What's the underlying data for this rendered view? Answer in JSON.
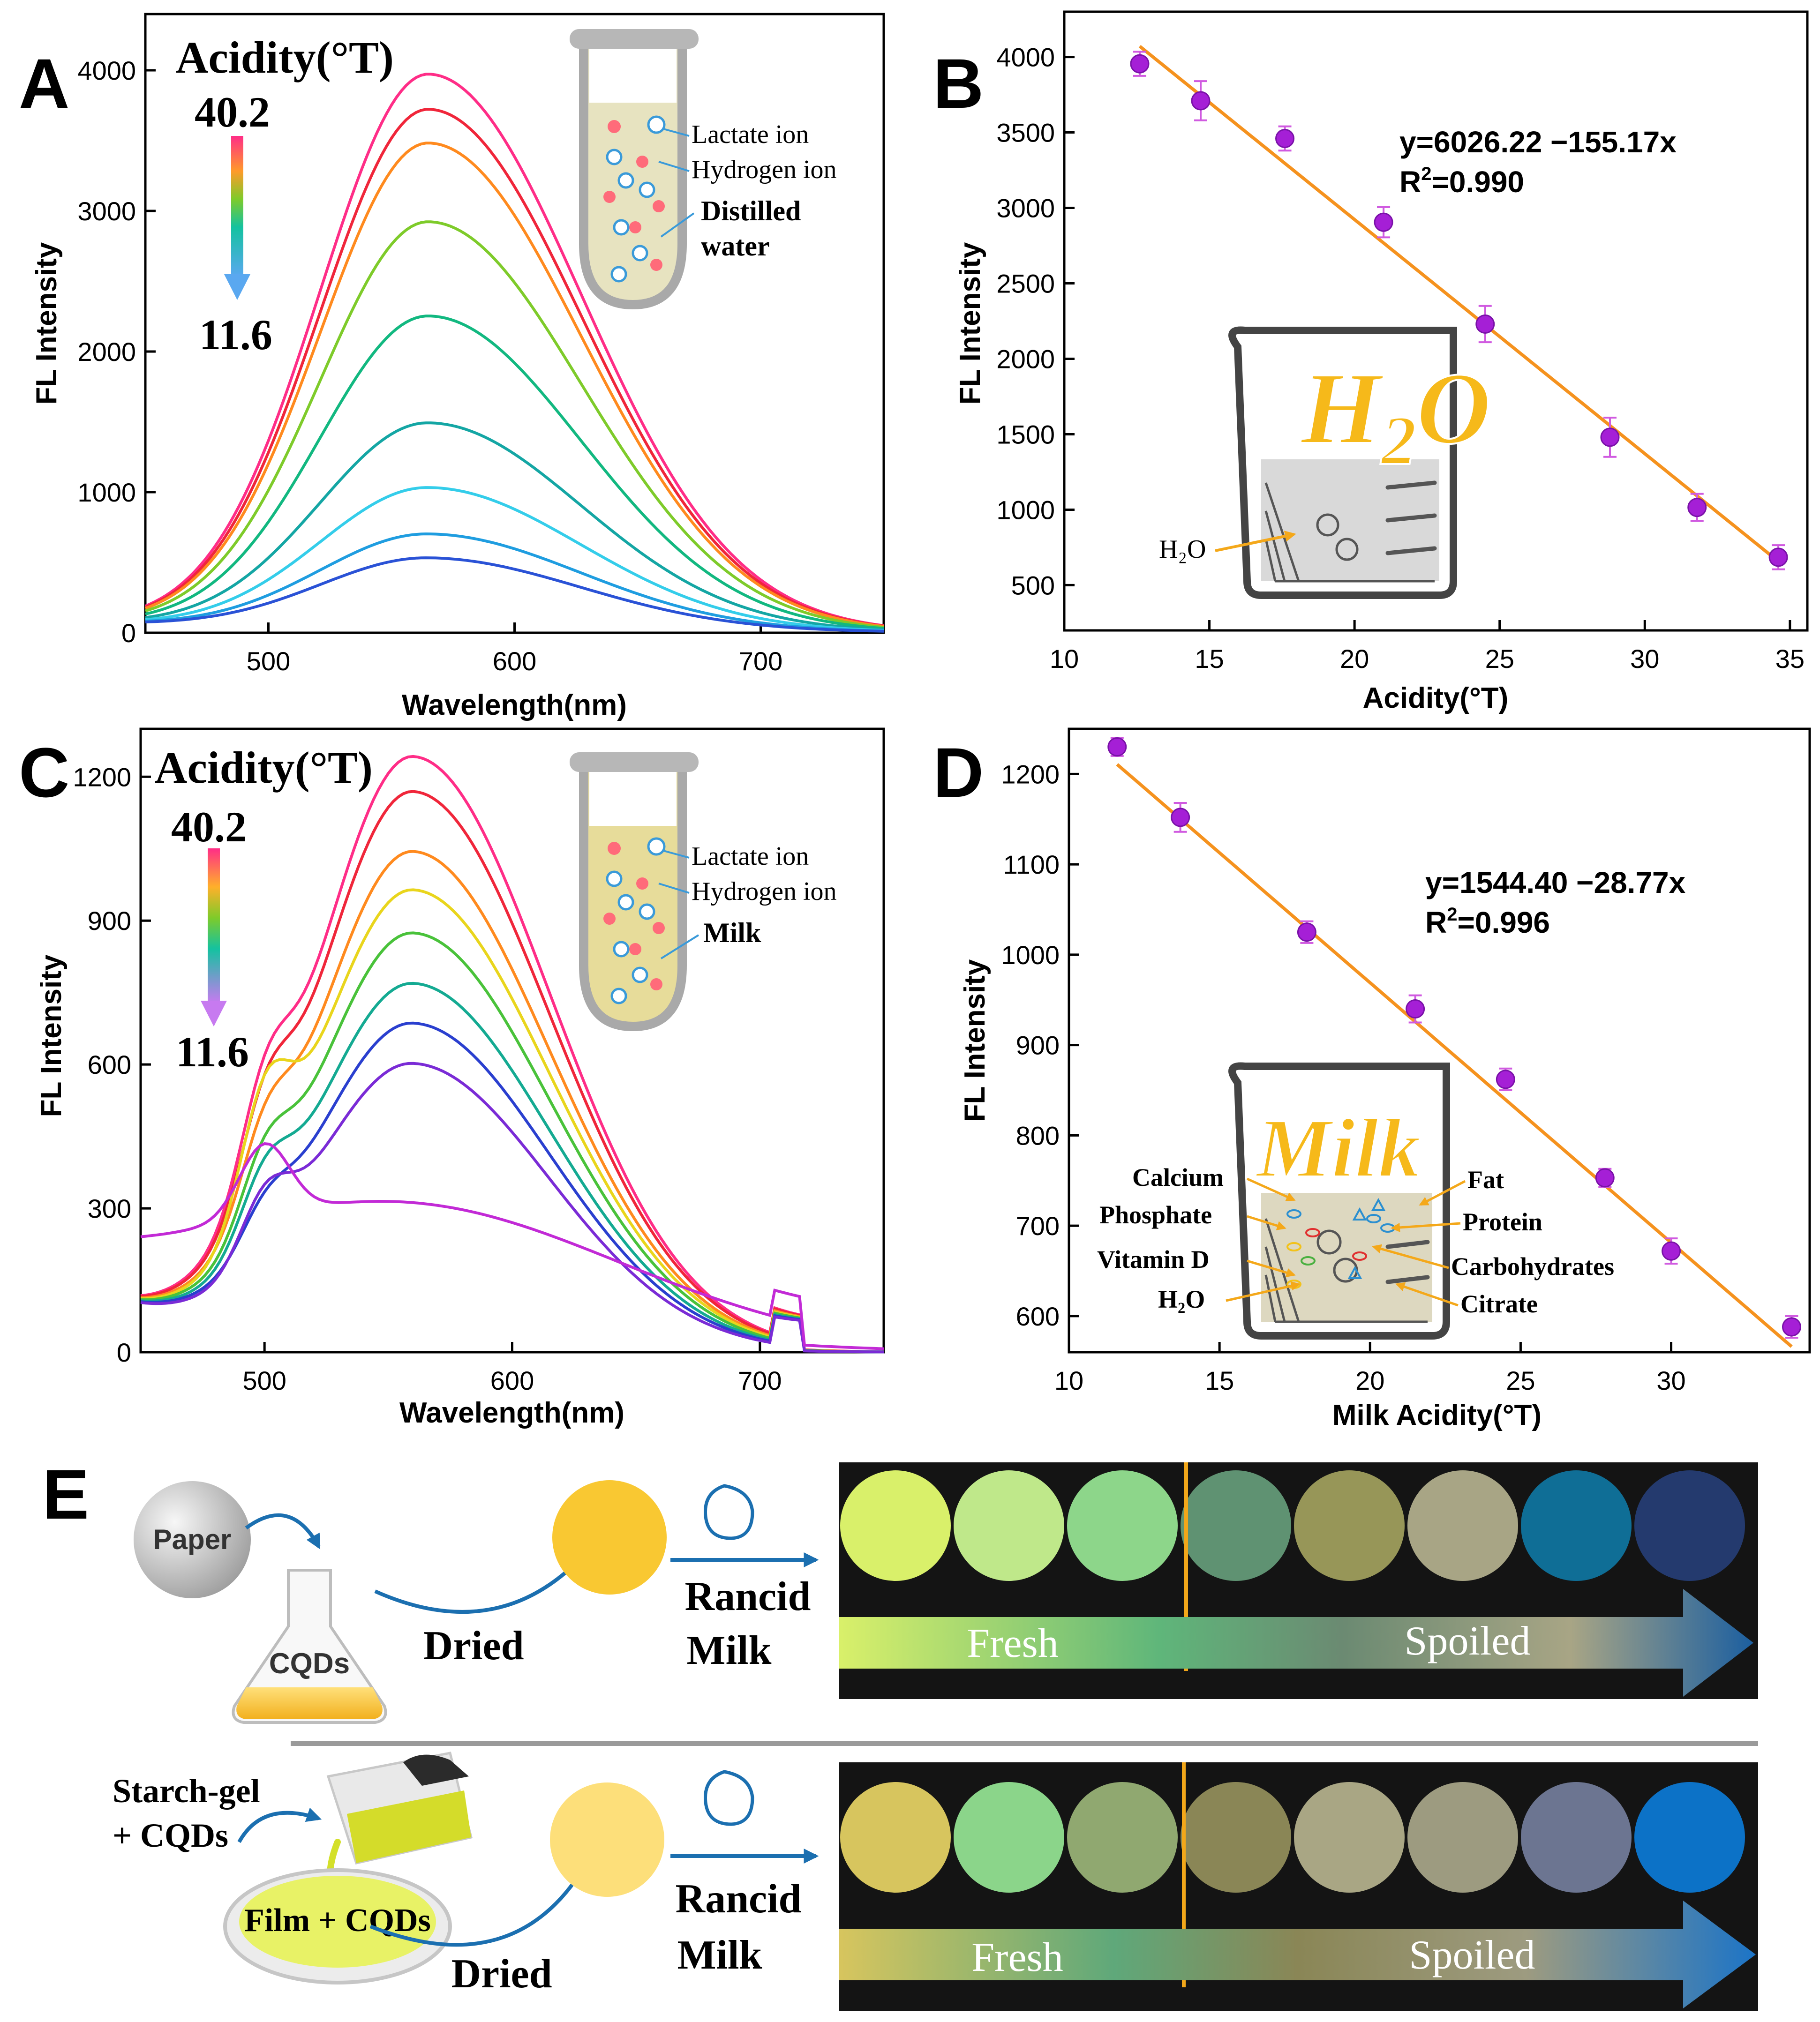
{
  "chart_data": [
    {
      "panel": "A",
      "type": "line",
      "xlabel": "Wavelength(nm)",
      "ylabel": "FL Intensity",
      "xlim": [
        450,
        750
      ],
      "ylim": [
        0,
        4400
      ],
      "xticks": [
        500,
        600,
        700
      ],
      "yticks": [
        0,
        1000,
        2000,
        3000,
        4000
      ],
      "gradient_title": "Acidity(°T)",
      "gradient_top": "40.2",
      "gradient_bottom": "11.6",
      "inset_labels": [
        "Lactate ion",
        "Hydrogen ion",
        "Distilled",
        "water"
      ],
      "series": [
        {
          "name": "s1",
          "color": "#ff2d87",
          "peak": 3950
        },
        {
          "name": "s2",
          "color": "#f0263a",
          "peak": 3700
        },
        {
          "name": "s3",
          "color": "#ff8a1e",
          "peak": 3460
        },
        {
          "name": "s4",
          "color": "#7ecb2a",
          "peak": 2900
        },
        {
          "name": "s5",
          "color": "#12b880",
          "peak": 2230
        },
        {
          "name": "s6",
          "color": "#14a6a4",
          "peak": 1470
        },
        {
          "name": "s7",
          "color": "#34cdea",
          "peak": 1010
        },
        {
          "name": "s8",
          "color": "#1f9de0",
          "peak": 680
        },
        {
          "name": "s9",
          "color": "#2a52d6",
          "peak": 510
        }
      ]
    },
    {
      "panel": "B",
      "type": "scatter",
      "xlabel": "Acidity(°T)",
      "ylabel": "FL Intensity",
      "xlim": [
        10,
        35.6
      ],
      "ylim": [
        200,
        4300
      ],
      "xticks": [
        10,
        15,
        20,
        25,
        30,
        35
      ],
      "yticks": [
        500,
        1000,
        1500,
        2000,
        2500,
        3000,
        3500,
        4000
      ],
      "equation": "y=6026.22 −155.17x",
      "r2_prefix": "R",
      "r2_sup": "2",
      "r2_value": "=0.990",
      "fit": {
        "intercept": 6026.22,
        "slope": -155.17,
        "x_range": [
          12.6,
          34.6
        ]
      },
      "points": [
        {
          "x": 12.6,
          "y": 3955,
          "err": 80
        },
        {
          "x": 14.7,
          "y": 3710,
          "err": 130
        },
        {
          "x": 17.6,
          "y": 3460,
          "err": 80
        },
        {
          "x": 21.0,
          "y": 2905,
          "err": 100
        },
        {
          "x": 24.5,
          "y": 2230,
          "err": 120
        },
        {
          "x": 28.8,
          "y": 1480,
          "err": 130
        },
        {
          "x": 31.8,
          "y": 1015,
          "err": 90
        },
        {
          "x": 34.6,
          "y": 685,
          "err": 80
        }
      ],
      "beaker_main": "H",
      "beaker_sub": "2",
      "beaker_tail": "O",
      "beaker_pointer": "H₂O"
    },
    {
      "panel": "C",
      "type": "line",
      "xlabel": "Wavelength(nm)",
      "ylabel": "FL Intensity",
      "xlim": [
        450,
        750
      ],
      "ylim": [
        0,
        1300
      ],
      "xticks": [
        500,
        600,
        700
      ],
      "yticks": [
        0,
        300,
        600,
        900,
        1200
      ],
      "gradient_title": "Acidity(°T)",
      "gradient_top": "40.2",
      "gradient_bottom": "11.6",
      "inset_labels": [
        "Lactate ion",
        "Hydrogen ion",
        "Milk"
      ],
      "series": [
        {
          "name": "s1",
          "color": "#ff2d87",
          "peak": 1228
        },
        {
          "name": "s2",
          "color": "#f0263a",
          "peak": 1155
        },
        {
          "name": "s3",
          "color": "#ff8a1e",
          "peak": 1030
        },
        {
          "name": "s4",
          "color": "#e9d51c",
          "peak": 950
        },
        {
          "name": "s5",
          "color": "#49c23a",
          "peak": 860
        },
        {
          "name": "s6",
          "color": "#14aa92",
          "peak": 755
        },
        {
          "name": "s7",
          "color": "#2a3fcf",
          "peak": 672
        },
        {
          "name": "s8",
          "color": "#7a2bd6",
          "peak": 588
        },
        {
          "name": "s9",
          "color": "#c22ad6",
          "peak": 298
        }
      ]
    },
    {
      "panel": "D",
      "type": "scatter",
      "xlabel": "Milk Acidity(°T)",
      "ylabel": "FL Intensity",
      "xlim": [
        10,
        34.6
      ],
      "ylim": [
        560,
        1250
      ],
      "xticks": [
        10,
        15,
        20,
        25,
        30
      ],
      "yticks": [
        600,
        700,
        800,
        900,
        1000,
        1100,
        1200
      ],
      "equation": "y=1544.40 −28.77x",
      "r2_prefix": "R",
      "r2_sup": "2",
      "r2_value": "=0.996",
      "fit": {
        "intercept": 1544.4,
        "slope": -28.77,
        "x_range": [
          11.6,
          34.0
        ]
      },
      "points": [
        {
          "x": 11.6,
          "y": 1230,
          "err": 10
        },
        {
          "x": 13.7,
          "y": 1152,
          "err": 16
        },
        {
          "x": 17.9,
          "y": 1025,
          "err": 12
        },
        {
          "x": 21.5,
          "y": 940,
          "err": 15
        },
        {
          "x": 24.5,
          "y": 862,
          "err": 12
        },
        {
          "x": 27.8,
          "y": 753,
          "err": 10
        },
        {
          "x": 30.0,
          "y": 672,
          "err": 14
        },
        {
          "x": 34.0,
          "y": 588,
          "err": 12
        }
      ],
      "beaker_main": "Milk",
      "components_left": [
        "Calcium",
        "Phosphate",
        "Vitamin D",
        "H₂O"
      ],
      "components_right": [
        "Fat",
        "Protein",
        "Carbohydrates",
        "Citrate"
      ]
    }
  ],
  "panel_letters": [
    "A",
    "B",
    "C",
    "D",
    "E"
  ],
  "panel_e": {
    "row1": {
      "paper": "Paper",
      "flask": "CQDs",
      "dried": "Dried",
      "rancid_1": "Rancid",
      "rancid_2": "Milk",
      "fresh": "Fresh",
      "spoiled": "Spoiled",
      "circles": [
        "#d9f06a",
        "#bfe88a",
        "#8dd68a",
        "#5f9272",
        "#979658",
        "#a8a585",
        "#0f6e96",
        "#243a6e"
      ]
    },
    "row2": {
      "starch_1": "Starch-gel",
      "starch_2": "+ CQDs",
      "film": "Film + CQDs",
      "dried": "Dried",
      "rancid_1": "Rancid",
      "rancid_2": "Milk",
      "fresh": "Fresh",
      "spoiled": "Spoiled",
      "circles": [
        "#d7c55e",
        "#8bd58a",
        "#90a870",
        "#8a8656",
        "#a9a684",
        "#9d9b80",
        "#6c7591",
        "#0c72c7"
      ]
    }
  }
}
